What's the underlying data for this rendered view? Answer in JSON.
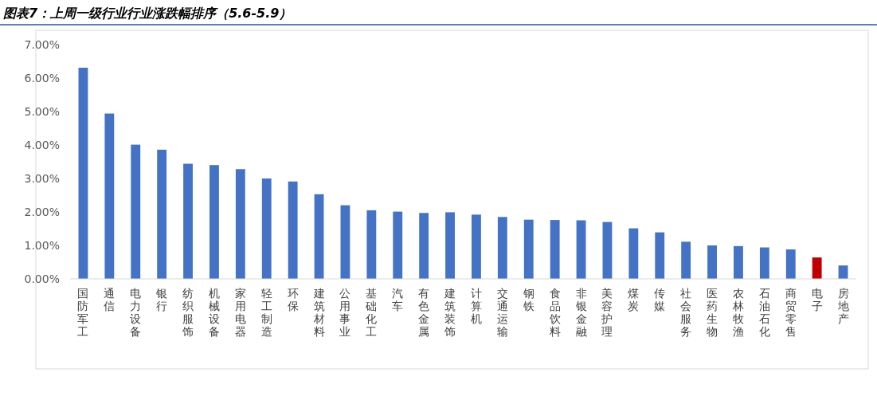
{
  "chart_data": {
    "type": "bar",
    "title": "图表7：上周一级行业行业涨跌幅排序（5.6-5.9）",
    "categories": [
      "国防军工",
      "通信",
      "电力设备",
      "银行",
      "纺织服饰",
      "机械设备",
      "家用电器",
      "轻工制造",
      "环保",
      "建筑材料",
      "公用事业",
      "基础化工",
      "汽车",
      "有色金属",
      "建筑装饰",
      "计算机",
      "交通运输",
      "钢铁",
      "食品饮料",
      "非银金融",
      "美容护理",
      "煤炭",
      "传媒",
      "社会服务",
      "医药生物",
      "农林牧渔",
      "石油石化",
      "商贸零售",
      "电子",
      "房地产"
    ],
    "values": [
      6.31,
      4.94,
      4.01,
      3.86,
      3.44,
      3.4,
      3.28,
      3.0,
      2.91,
      2.53,
      2.2,
      2.05,
      2.01,
      1.97,
      1.99,
      1.92,
      1.85,
      1.77,
      1.76,
      1.75,
      1.7,
      1.51,
      1.39,
      1.11,
      1.0,
      0.98,
      0.94,
      0.88,
      0.64,
      0.4
    ],
    "colors": [
      "#4472c4",
      "#4472c4",
      "#4472c4",
      "#4472c4",
      "#4472c4",
      "#4472c4",
      "#4472c4",
      "#4472c4",
      "#4472c4",
      "#4472c4",
      "#4472c4",
      "#4472c4",
      "#4472c4",
      "#4472c4",
      "#4472c4",
      "#4472c4",
      "#4472c4",
      "#4472c4",
      "#4472c4",
      "#4472c4",
      "#4472c4",
      "#4472c4",
      "#4472c4",
      "#4472c4",
      "#4472c4",
      "#4472c4",
      "#4472c4",
      "#4472c4",
      "#c00000",
      "#4472c4"
    ],
    "ylim": [
      0,
      7
    ],
    "yticks": [
      {
        "value": 0,
        "label": "0.00%"
      },
      {
        "value": 1,
        "label": "1.00%"
      },
      {
        "value": 2,
        "label": "2.00%"
      },
      {
        "value": 3,
        "label": "3.00%"
      },
      {
        "value": 4,
        "label": "4.00%"
      },
      {
        "value": 5,
        "label": "5.00%"
      },
      {
        "value": 6,
        "label": "6.00%"
      },
      {
        "value": 7,
        "label": "7.00%"
      }
    ]
  }
}
